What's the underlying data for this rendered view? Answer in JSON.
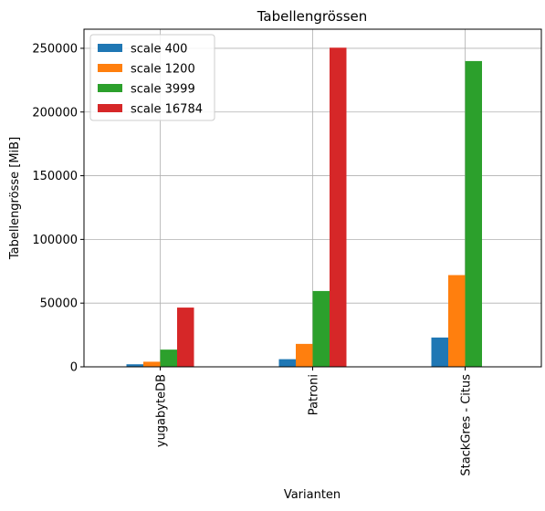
{
  "chart_data": {
    "type": "bar",
    "title": "Tabellengrössen",
    "xlabel": "Varianten",
    "ylabel": "Tabellengrösse [MiB]",
    "categories": [
      "yugabyteDB",
      "Patroni",
      "StackGres - Citus"
    ],
    "ylim": [
      0,
      265000
    ],
    "yticks": [
      0,
      50000,
      100000,
      150000,
      200000,
      250000
    ],
    "ytick_labels": [
      "0",
      "50000",
      "100000",
      "150000",
      "200000",
      "250000"
    ],
    "grid": true,
    "legend_position": "top-left",
    "series": [
      {
        "name": "scale 400",
        "color": "#1f77b4",
        "values": [
          2000,
          6000,
          23000
        ]
      },
      {
        "name": "scale 1200",
        "color": "#ff7f0e",
        "values": [
          4000,
          18000,
          72000
        ]
      },
      {
        "name": "scale 3999",
        "color": "#2ca02c",
        "values": [
          13500,
          59500,
          240000
        ]
      },
      {
        "name": "scale 16784",
        "color": "#d62728",
        "values": [
          46500,
          250500,
          0
        ]
      }
    ]
  }
}
